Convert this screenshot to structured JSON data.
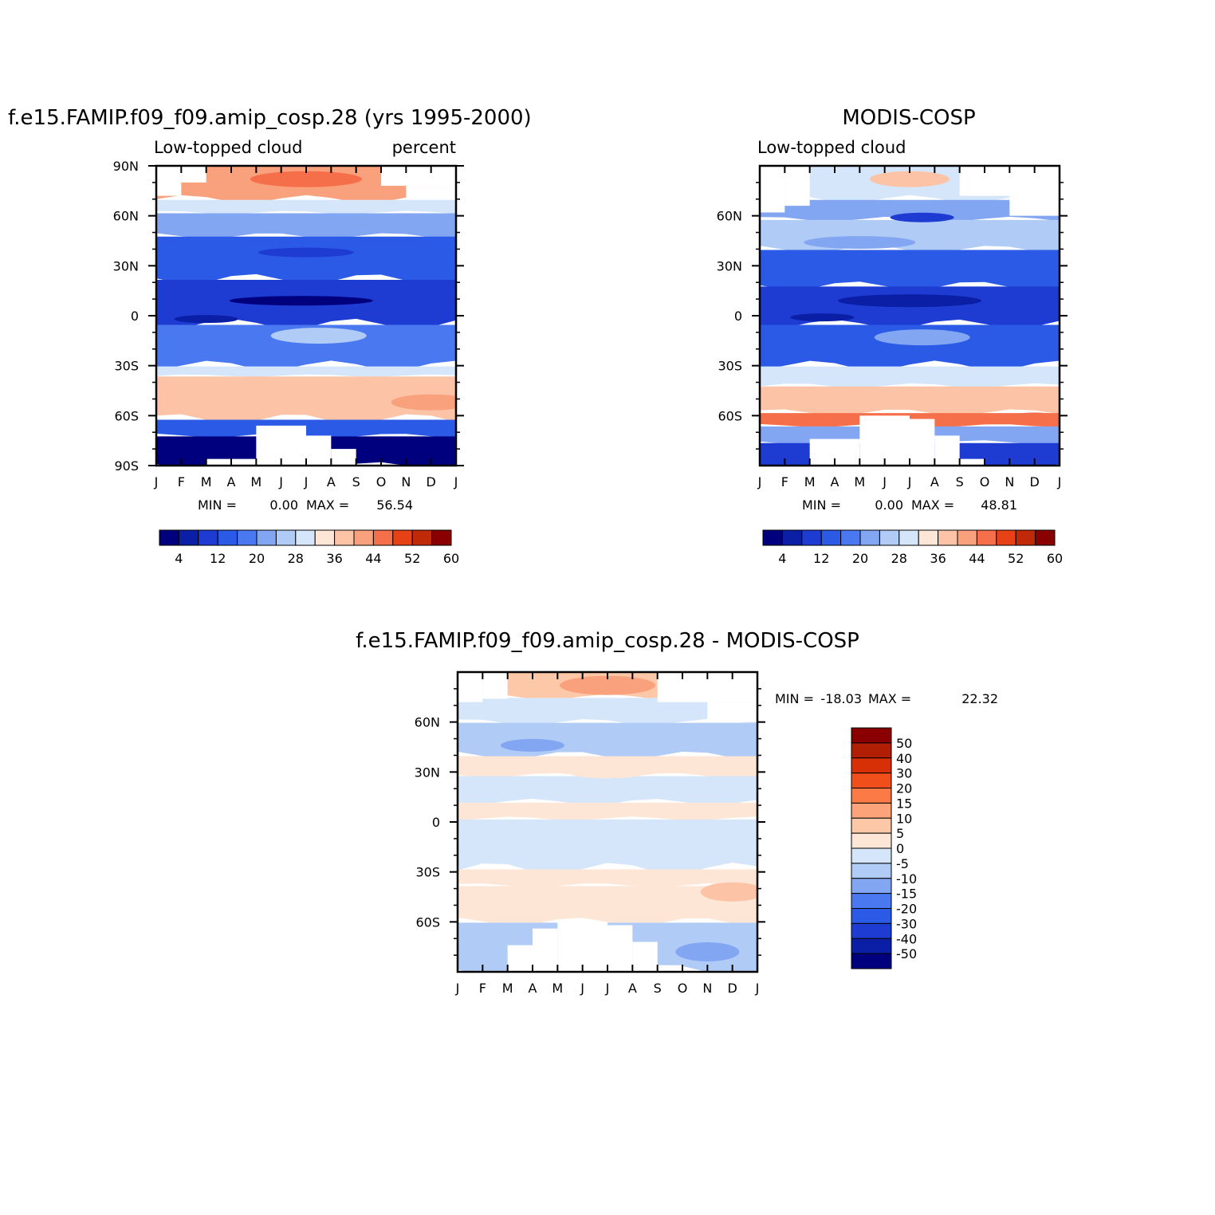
{
  "chart_data": [
    {
      "type": "heatmap",
      "name": "model",
      "title": "f.e15.FAMIP.f09_f09.amip_cosp.28 (yrs 1995-2000)",
      "left_label": "Low-topped cloud",
      "right_label": "percent",
      "x_tick_labels": [
        "J",
        "F",
        "M",
        "A",
        "M",
        "J",
        "J",
        "A",
        "S",
        "O",
        "N",
        "D",
        "J"
      ],
      "y_tick_labels": [
        "90N",
        "60N",
        "30N",
        "0",
        "30S",
        "60S",
        "90S"
      ],
      "ylim": [
        -90,
        90
      ],
      "min_label": "MIN =",
      "min_value": "0.00",
      "max_label": "MAX =",
      "max_value": "56.54",
      "colorbar_labels": [
        "4",
        "12",
        "20",
        "28",
        "36",
        "44",
        "52",
        "60"
      ],
      "colorbar_colors": [
        "#00007f",
        "#0a1ea6",
        "#1e3cd2",
        "#2a5ae6",
        "#4a78f0",
        "#82a6f2",
        "#b0cbf5",
        "#d6e6fa",
        "#fde6d6",
        "#fcc3a6",
        "#f9a07c",
        "#f5704a",
        "#e64216",
        "#c02a08",
        "#8a0000"
      ],
      "bands": [
        {
          "lat": [
            70,
            90
          ],
          "value": 40
        },
        {
          "lat": [
            62,
            70
          ],
          "value": 28
        },
        {
          "lat": [
            48,
            62
          ],
          "value": 22
        },
        {
          "lat": [
            22,
            48
          ],
          "value": 14
        },
        {
          "lat": [
            -5,
            22
          ],
          "value": 10
        },
        {
          "lat": [
            -30,
            -5
          ],
          "value": 16
        },
        {
          "lat": [
            -36,
            -30
          ],
          "value": 28
        },
        {
          "lat": [
            -62,
            -36
          ],
          "value": 38
        },
        {
          "lat": [
            -72,
            -62
          ],
          "value": 12
        },
        {
          "lat": [
            -90,
            -72
          ],
          "value": 2
        }
      ]
    },
    {
      "type": "heatmap",
      "name": "obs",
      "title": "MODIS-COSP",
      "left_label": "Low-topped cloud",
      "right_label": "",
      "x_tick_labels": [
        "J",
        "F",
        "M",
        "A",
        "M",
        "J",
        "J",
        "A",
        "S",
        "O",
        "N",
        "D",
        "J"
      ],
      "y_tick_labels": [
        "60N",
        "30N",
        "0",
        "30S",
        "60S"
      ],
      "ylim": [
        -90,
        90
      ],
      "min_label": "MIN =",
      "min_value": "0.00",
      "max_label": "MAX =",
      "max_value": "48.81",
      "colorbar_labels": [
        "4",
        "12",
        "20",
        "28",
        "36",
        "44",
        "52",
        "60"
      ],
      "colorbar_colors": [
        "#00007f",
        "#0a1ea6",
        "#1e3cd2",
        "#2a5ae6",
        "#4a78f0",
        "#82a6f2",
        "#b0cbf5",
        "#d6e6fa",
        "#fde6d6",
        "#fcc3a6",
        "#f9a07c",
        "#f5704a",
        "#e64216",
        "#c02a08",
        "#8a0000"
      ],
      "bands": [
        {
          "lat": [
            70,
            90
          ],
          "value": 30
        },
        {
          "lat": [
            58,
            70
          ],
          "value": 22
        },
        {
          "lat": [
            40,
            58
          ],
          "value": 26
        },
        {
          "lat": [
            18,
            40
          ],
          "value": 14
        },
        {
          "lat": [
            -5,
            18
          ],
          "value": 8
        },
        {
          "lat": [
            -30,
            -5
          ],
          "value": 14
        },
        {
          "lat": [
            -42,
            -30
          ],
          "value": 28
        },
        {
          "lat": [
            -58,
            -42
          ],
          "value": 36
        },
        {
          "lat": [
            -66,
            -58
          ],
          "value": 44
        },
        {
          "lat": [
            -76,
            -66
          ],
          "value": 20
        },
        {
          "lat": [
            -90,
            -76
          ],
          "value": 8
        }
      ]
    },
    {
      "type": "heatmap",
      "name": "diff",
      "title": "f.e15.FAMIP.f09_f09.amip_cosp.28 - MODIS-COSP",
      "x_tick_labels": [
        "J",
        "F",
        "M",
        "A",
        "M",
        "J",
        "J",
        "A",
        "S",
        "O",
        "N",
        "D",
        "J"
      ],
      "y_tick_labels": [
        "60N",
        "30N",
        "0",
        "30S",
        "60S"
      ],
      "ylim": [
        -90,
        90
      ],
      "min_label": "MIN =",
      "min_value": "-18.03",
      "max_label": "MAX =",
      "max_value": "22.32",
      "colorbar_labels": [
        "50",
        "40",
        "30",
        "20",
        "15",
        "10",
        "5",
        "0",
        "-5",
        "-10",
        "-15",
        "-20",
        "-30",
        "-40",
        "-50"
      ],
      "colorbar_colors": [
        "#8a0000",
        "#b01e04",
        "#d83006",
        "#f04e1a",
        "#fb7a46",
        "#fca37a",
        "#fdc8a8",
        "#fde6d6",
        "#d6e6fa",
        "#b0cbf5",
        "#82a6f2",
        "#4a78f0",
        "#2a5ae6",
        "#1e3cd2",
        "#0a1ea6",
        "#00007f"
      ],
      "bands": [
        {
          "lat": [
            75,
            90
          ],
          "value": 6
        },
        {
          "lat": [
            60,
            75
          ],
          "value": -2
        },
        {
          "lat": [
            40,
            60
          ],
          "value": -6
        },
        {
          "lat": [
            28,
            40
          ],
          "value": 2
        },
        {
          "lat": [
            12,
            28
          ],
          "value": -2
        },
        {
          "lat": [
            2,
            12
          ],
          "value": 3
        },
        {
          "lat": [
            -28,
            2
          ],
          "value": -2
        },
        {
          "lat": [
            -38,
            -28
          ],
          "value": 2
        },
        {
          "lat": [
            -60,
            -38
          ],
          "value": 4
        },
        {
          "lat": [
            -90,
            -60
          ],
          "value": -7
        }
      ]
    }
  ]
}
